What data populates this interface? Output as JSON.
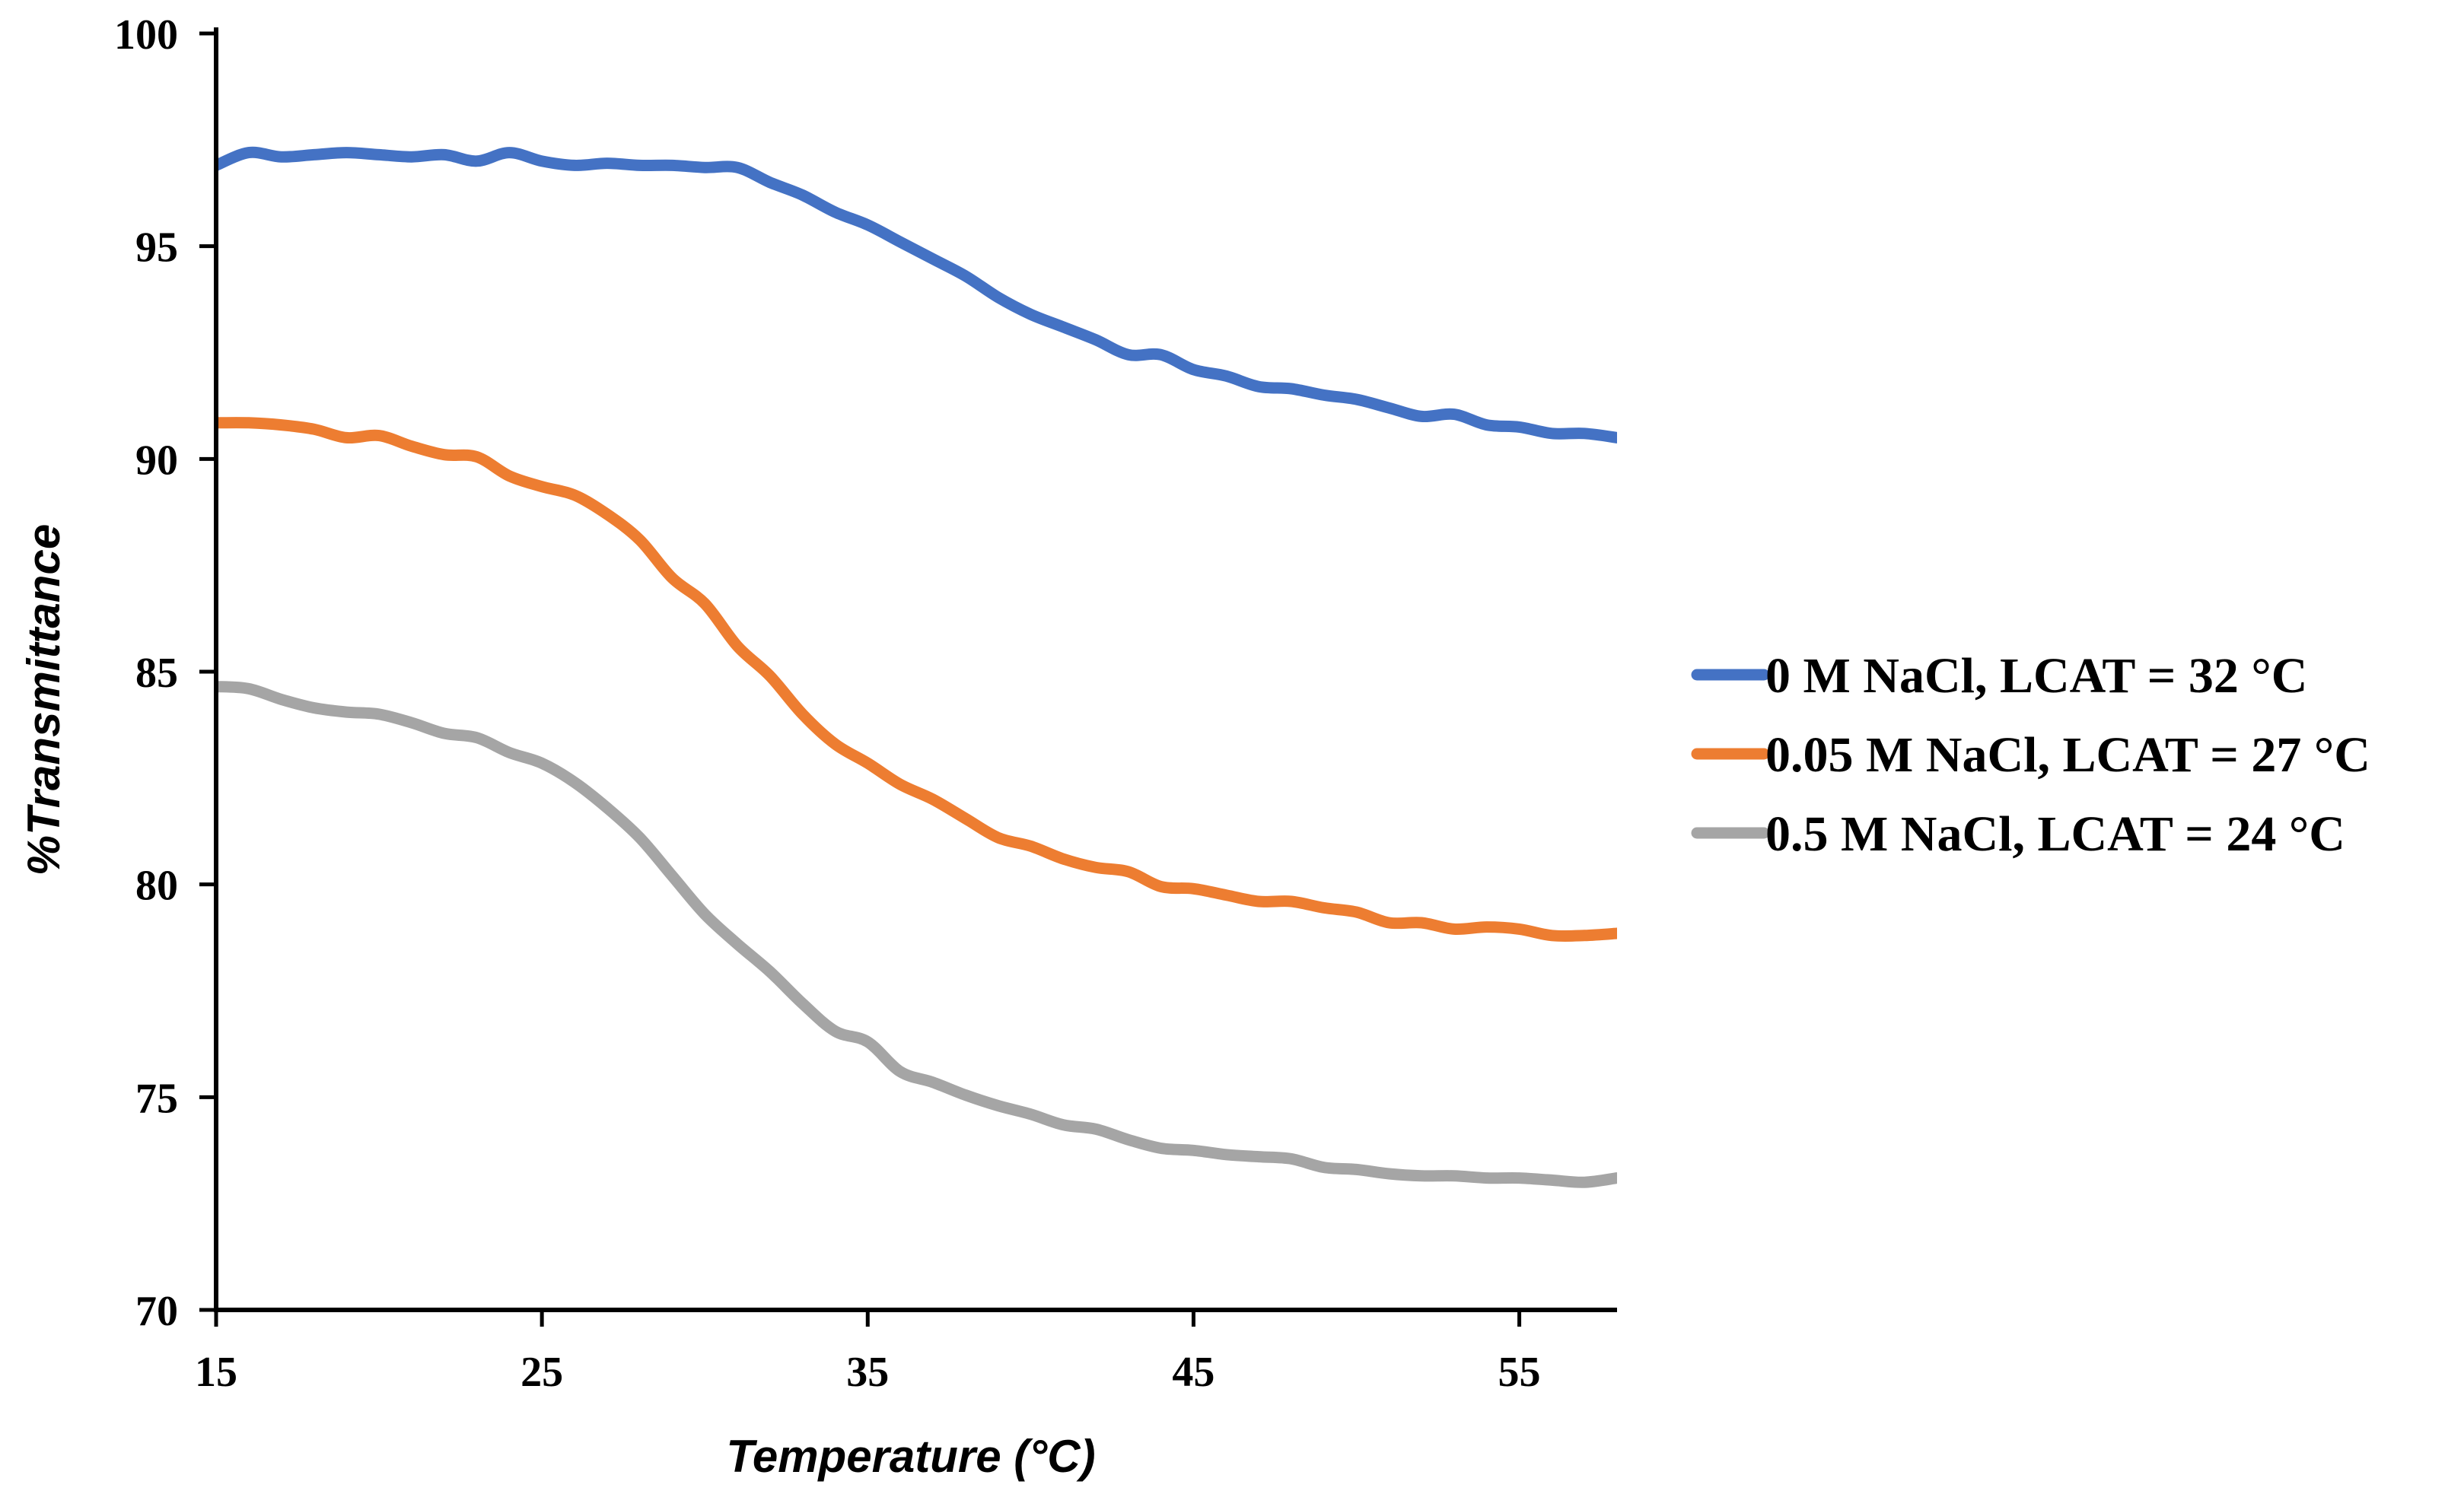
{
  "chart_data": {
    "type": "line",
    "xlabel": "Temperature (°C)",
    "ylabel": "%Transmittance",
    "xlim": [
      15,
      58
    ],
    "ylim": [
      70,
      100
    ],
    "xticks": [
      15,
      25,
      35,
      45,
      55
    ],
    "yticks": [
      70,
      75,
      80,
      85,
      90,
      95,
      100
    ],
    "grid": false,
    "legend_position": "right",
    "series": [
      {
        "name": "0 M NaCl, LCAT = 32 °C",
        "color": "#4472C4",
        "x": [
          15,
          16,
          17,
          18,
          19,
          20,
          21,
          22,
          23,
          24,
          25,
          26,
          27,
          28,
          29,
          30,
          31,
          32,
          33,
          34,
          35,
          36,
          37,
          38,
          39,
          40,
          41,
          42,
          43,
          44,
          45,
          46,
          47,
          48,
          49,
          50,
          51,
          52,
          53,
          54,
          55,
          56,
          57,
          58
        ],
        "y": [
          96.9,
          97.2,
          97.1,
          97.15,
          97.2,
          97.15,
          97.1,
          97.15,
          97.0,
          97.2,
          97.0,
          96.9,
          96.95,
          96.9,
          96.9,
          96.85,
          96.85,
          96.5,
          96.2,
          95.8,
          95.5,
          95.1,
          94.7,
          94.3,
          93.8,
          93.4,
          93.1,
          92.8,
          92.45,
          92.45,
          92.1,
          91.95,
          91.7,
          91.65,
          91.5,
          91.4,
          91.2,
          91.0,
          91.05,
          90.8,
          90.75,
          90.6,
          90.6,
          90.5
        ]
      },
      {
        "name": "0.05 M NaCl, LCAT = 27 °C",
        "color": "#ED7D31",
        "x": [
          15,
          16,
          17,
          18,
          19,
          20,
          21,
          22,
          23,
          24,
          25,
          26,
          27,
          28,
          29,
          30,
          31,
          32,
          33,
          34,
          35,
          36,
          37,
          38,
          39,
          40,
          41,
          42,
          43,
          44,
          45,
          46,
          47,
          48,
          49,
          50,
          51,
          52,
          53,
          54,
          55,
          56,
          57,
          58
        ],
        "y": [
          90.85,
          90.85,
          90.8,
          90.7,
          90.5,
          90.55,
          90.3,
          90.1,
          90.05,
          89.6,
          89.35,
          89.15,
          88.7,
          88.1,
          87.2,
          86.6,
          85.6,
          84.9,
          84.0,
          83.3,
          82.85,
          82.35,
          82.0,
          81.55,
          81.1,
          80.9,
          80.6,
          80.4,
          80.3,
          79.95,
          79.9,
          79.75,
          79.6,
          79.6,
          79.45,
          79.35,
          79.1,
          79.1,
          78.95,
          79.0,
          78.95,
          78.8,
          78.8,
          78.85
        ]
      },
      {
        "name": "0.5 M NaCl, LCAT = 24 °C",
        "color": "#A5A5A5",
        "x": [
          15,
          16,
          17,
          18,
          19,
          20,
          21,
          22,
          23,
          24,
          25,
          26,
          27,
          28,
          29,
          30,
          31,
          32,
          33,
          34,
          35,
          36,
          37,
          38,
          39,
          40,
          41,
          42,
          43,
          44,
          45,
          46,
          47,
          48,
          49,
          50,
          51,
          52,
          53,
          54,
          55,
          56,
          57,
          58
        ],
        "y": [
          84.65,
          84.6,
          84.35,
          84.15,
          84.05,
          84.0,
          83.8,
          83.55,
          83.45,
          83.1,
          82.85,
          82.4,
          81.8,
          81.1,
          80.2,
          79.3,
          78.6,
          77.95,
          77.2,
          76.55,
          76.3,
          75.6,
          75.35,
          75.05,
          74.8,
          74.6,
          74.35,
          74.25,
          74.0,
          73.8,
          73.75,
          73.65,
          73.6,
          73.55,
          73.35,
          73.3,
          73.2,
          73.15,
          73.15,
          73.1,
          73.1,
          73.05,
          73.0,
          73.1
        ]
      }
    ]
  }
}
